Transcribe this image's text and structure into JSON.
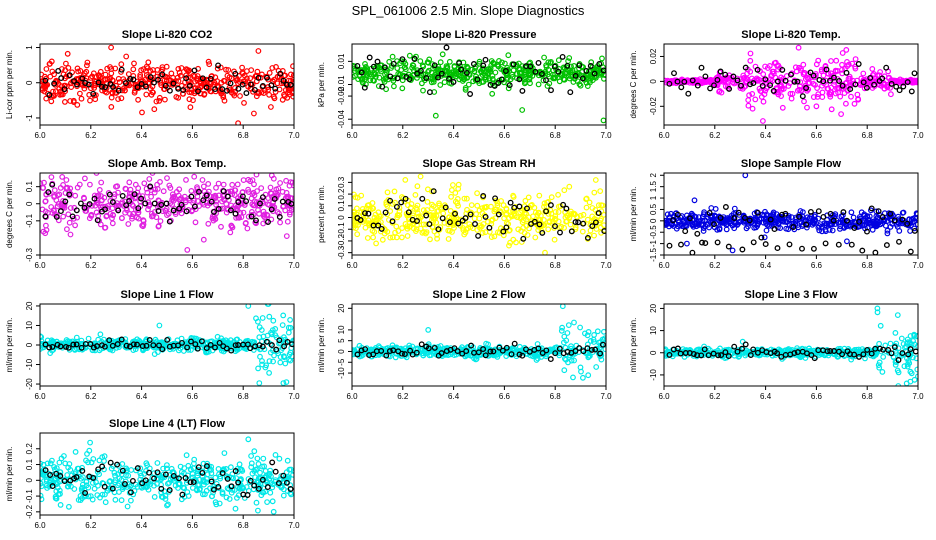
{
  "title": "SPL_061006  2.5 Min. Slope Diagnostics",
  "chart_data": [
    {
      "type": "scatter",
      "title": "Slope Li-820 CO2",
      "ylabel": "Li-cor ppm per min.",
      "color": "#ff0000",
      "xlim": [
        6.0,
        7.0
      ],
      "ylim": [
        -1.2,
        1.1
      ],
      "yticks": [
        -1,
        0,
        1
      ],
      "xticks": [
        6.0,
        6.2,
        6.4,
        6.6,
        6.8,
        7.0
      ],
      "spread": 0.25,
      "outliers": [
        [
          6.28,
          1.0
        ],
        [
          6.37,
          0.55
        ],
        [
          6.78,
          -1.15
        ],
        [
          6.86,
          0.9
        ],
        [
          6.45,
          -0.75
        ]
      ],
      "black_spread": 0.22
    },
    {
      "type": "scatter",
      "title": "Slope Li-820 Pressure",
      "ylabel": "kPa per min.",
      "color": "#00c000",
      "xlim": [
        6.0,
        7.0
      ],
      "ylim": [
        -0.045,
        0.025
      ],
      "yticks": [
        -0.04,
        -0.02,
        -0.01,
        0.01
      ],
      "xticks": [
        6.0,
        6.2,
        6.4,
        6.6,
        6.8,
        7.0
      ],
      "spread": 0.006,
      "outliers": [
        [
          6.33,
          -0.037
        ],
        [
          6.67,
          -0.032
        ],
        [
          6.99,
          -0.041
        ],
        [
          6.16,
          0.014
        ],
        [
          6.9,
          -0.011
        ]
      ],
      "black_spread": 0.008
    },
    {
      "type": "scatter",
      "title": "Slope Li-820 Temp.",
      "ylabel": "degrees C per min.",
      "color": "#ff00ff",
      "xlim": [
        6.0,
        7.0
      ],
      "ylim": [
        -0.035,
        0.03
      ],
      "yticks": [
        -0.02,
        0.0,
        0.02
      ],
      "xticks": [
        6.0,
        6.2,
        6.4,
        6.6,
        6.8,
        7.0
      ],
      "spread": 0.006,
      "center_spread": true,
      "outliers": [
        [
          6.53,
          0.027
        ],
        [
          6.75,
          -0.018
        ],
        [
          6.6,
          -0.02
        ],
        [
          6.44,
          0.015
        ],
        [
          6.82,
          0.01
        ]
      ],
      "black_spread": 0.006
    },
    {
      "type": "scatter",
      "title": "Slope Amb. Box Temp.",
      "ylabel": "degrees C per min.",
      "color": "#e020e0",
      "xlim": [
        6.0,
        7.0
      ],
      "ylim": [
        -0.3,
        0.18
      ],
      "yticks": [
        -0.3,
        -0.1,
        0.0,
        0.1
      ],
      "xticks": [
        6.0,
        6.2,
        6.4,
        6.6,
        6.8,
        7.0
      ],
      "spread": 0.07,
      "outliers": [
        [
          6.12,
          -0.18
        ],
        [
          6.5,
          0.15
        ],
        [
          6.58,
          -0.27
        ],
        [
          6.82,
          0.14
        ]
      ],
      "black_spread": 0.05
    },
    {
      "type": "scatter",
      "title": "Slope Gas Stream RH",
      "ylabel": "percent per min.",
      "color": "#ffff00",
      "xlim": [
        6.0,
        7.0
      ],
      "ylim": [
        -0.32,
        0.38
      ],
      "yticks": [
        -0.3,
        -0.2,
        -0.1,
        0.0,
        0.1,
        0.2,
        0.3
      ],
      "xticks": [
        6.0,
        6.2,
        6.4,
        6.6,
        6.8,
        7.0
      ],
      "spread": 0.1,
      "outliers": [
        [
          6.27,
          0.35
        ],
        [
          6.42,
          0.28
        ],
        [
          6.76,
          -0.3
        ],
        [
          6.96,
          0.32
        ]
      ],
      "black_spread": 0.11
    },
    {
      "type": "scatter",
      "title": "Slope Sample Flow",
      "ylabel": "ml/min per min.",
      "color": "#0000e0",
      "xlim": [
        6.0,
        7.0
      ],
      "ylim": [
        -1.5,
        2.1
      ],
      "yticks": [
        -1.5,
        -1.0,
        -0.5,
        0.0,
        0.5,
        1.0,
        1.5,
        2.0
      ],
      "xticks": [
        6.0,
        6.2,
        6.4,
        6.6,
        6.8,
        7.0
      ],
      "spread": 0.2,
      "outliers": [
        [
          6.32,
          2.0
        ],
        [
          6.27,
          -1.3
        ],
        [
          6.09,
          -1.0
        ],
        [
          6.72,
          -0.9
        ],
        [
          6.12,
          0.9
        ]
      ],
      "black_spread": 0.35,
      "black_low": true
    },
    {
      "type": "scatter",
      "title": "Slope Line 1 Flow",
      "ylabel": "ml/min per min.",
      "color": "#00e8e8",
      "xlim": [
        6.0,
        7.0
      ],
      "ylim": [
        -21,
        21
      ],
      "yticks": [
        -20,
        -10,
        0,
        10,
        20
      ],
      "xticks": [
        6.0,
        6.2,
        6.4,
        6.6,
        6.8,
        7.0
      ],
      "spread": 1.5,
      "tail": [
        6.85,
        7.0,
        9
      ],
      "outliers": [
        [
          6.82,
          20
        ],
        [
          6.47,
          10
        ],
        [
          6.97,
          -19
        ]
      ],
      "black_spread": 1.2
    },
    {
      "type": "scatter",
      "title": "Slope Line 2 Flow",
      "ylabel": "ml/min per min.",
      "color": "#00e8e8",
      "xlim": [
        6.0,
        7.0
      ],
      "ylim": [
        -16,
        22
      ],
      "yticks": [
        -10,
        -5,
        0,
        5,
        10,
        20
      ],
      "xticks": [
        6.0,
        6.2,
        6.4,
        6.6,
        6.8,
        7.0
      ],
      "spread": 1.2,
      "tail": [
        6.82,
        7.0,
        6
      ],
      "outliers": [
        [
          6.83,
          21
        ],
        [
          6.3,
          10
        ],
        [
          6.87,
          -12
        ],
        [
          6.93,
          -11
        ]
      ],
      "black_spread": 1.5
    },
    {
      "type": "scatter",
      "title": "Slope Line 3 Flow",
      "ylabel": "ml/min per min.",
      "color": "#00e8e8",
      "xlim": [
        6.0,
        7.0
      ],
      "ylim": [
        -15,
        22
      ],
      "yticks": [
        -10,
        0,
        10,
        20
      ],
      "xticks": [
        6.0,
        6.2,
        6.4,
        6.6,
        6.8,
        7.0
      ],
      "spread": 1.0,
      "tail": [
        6.84,
        7.0,
        6
      ],
      "outliers": [
        [
          6.84,
          20
        ],
        [
          6.31,
          5
        ],
        [
          6.97,
          -13
        ],
        [
          6.92,
          -8
        ]
      ],
      "black_spread": 1.2
    },
    {
      "type": "scatter",
      "title": "Slope Line 4 (LT) Flow",
      "ylabel": "ml/min per min.",
      "color": "#00e8e8",
      "xlim": [
        6.0,
        7.0
      ],
      "ylim": [
        -0.22,
        0.3
      ],
      "yticks": [
        -0.2,
        -0.1,
        0.0,
        0.1,
        0.2
      ],
      "xticks": [
        6.0,
        6.2,
        6.4,
        6.6,
        6.8,
        7.0
      ],
      "spread": 0.07,
      "outliers": [
        [
          6.82,
          0.26
        ],
        [
          6.92,
          -0.2
        ],
        [
          6.14,
          0.18
        ],
        [
          6.5,
          -0.16
        ]
      ],
      "black_spread": 0.05
    }
  ]
}
